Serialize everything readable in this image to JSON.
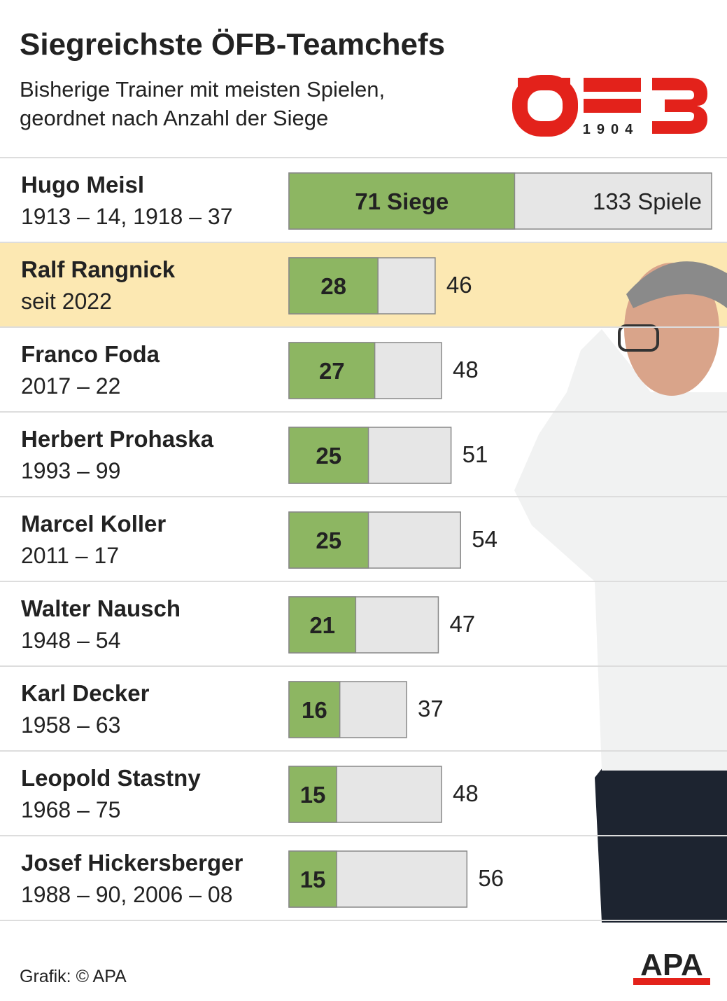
{
  "chart_data": {
    "type": "bar",
    "title": "Siegreichste ÖFB-Teamchefs",
    "subtitle": [
      "Bisherige Trainer mit meisten Spielen,",
      "geordnet nach Anzahl der Siege"
    ],
    "categories": [
      "Hugo Meisl",
      "Ralf Rangnick",
      "Franco Foda",
      "Herbert Prohaska",
      "Marcel Koller",
      "Walter Nausch",
      "Karl Decker",
      "Leopold Stastny",
      "Josef Hickersberger"
    ],
    "sublabels": [
      "1913 – 14, 1918 – 37",
      "seit 2022",
      "2017 – 22",
      "1993 – 99",
      "2011 – 17",
      "1948 – 54",
      "1958 – 63",
      "1968 – 75",
      "1988 – 90, 2006 – 08"
    ],
    "series": [
      {
        "color": "#8db662",
        "values": [
          71,
          28,
          27,
          25,
          25,
          21,
          16,
          15,
          15
        ],
        "value_labels": [
          "71 Siege",
          "28",
          "27",
          "25",
          "25",
          "21",
          "16",
          "15",
          "15"
        ]
      },
      {
        "color": "#e6e6e6",
        "values": [
          133,
          46,
          48,
          51,
          54,
          47,
          37,
          48,
          56
        ],
        "value_labels": [
          "133 Spiele",
          "46",
          "48",
          "51",
          "54",
          "47",
          "37",
          "48",
          "56"
        ]
      }
    ],
    "highlight": 1,
    "highlight_color": "#fce8b2",
    "logo": {
      "text": "1904",
      "color": "#e3221b"
    },
    "footer": "Grafik: © APA",
    "brand": "APA"
  }
}
